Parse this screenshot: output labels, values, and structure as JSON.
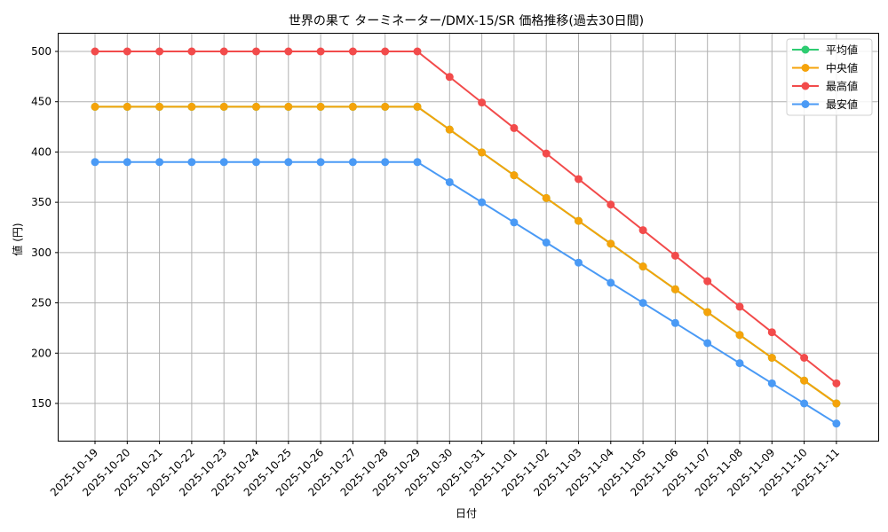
{
  "chart_data": {
    "type": "line",
    "title": "世界の果て ターミネーター/DMX-15/SR 価格推移(過去30日間)",
    "xlabel": "日付",
    "ylabel": "値 (円)",
    "ylim": [
      110,
      520
    ],
    "yticks": [
      150,
      200,
      250,
      300,
      350,
      400,
      450,
      500
    ],
    "grid": true,
    "legend_position": "upper right",
    "categories": [
      "2025-10-19",
      "2025-10-20",
      "2025-10-21",
      "2025-10-22",
      "2025-10-23",
      "2025-10-24",
      "2025-10-25",
      "2025-10-26",
      "2025-10-27",
      "2025-10-28",
      "2025-10-29",
      "2025-10-30",
      "2025-10-31",
      "2025-11-01",
      "2025-11-02",
      "2025-11-03",
      "2025-11-04",
      "2025-11-05",
      "2025-11-06",
      "2025-11-07",
      "2025-11-08",
      "2025-11-09",
      "2025-11-10",
      "2025-11-11"
    ],
    "series": [
      {
        "name": "平均値",
        "color": "#2ecc71",
        "values": [
          445,
          445,
          445,
          445,
          445,
          445,
          445,
          445,
          445,
          445,
          445,
          422.3,
          399.6,
          376.9,
          354.2,
          331.5,
          308.8,
          286.2,
          263.5,
          240.8,
          218.1,
          195.4,
          172.7,
          150
        ]
      },
      {
        "name": "中央値",
        "color": "#f5a30a",
        "values": [
          445,
          445,
          445,
          445,
          445,
          445,
          445,
          445,
          445,
          445,
          445,
          422.3,
          399.6,
          376.9,
          354.2,
          331.5,
          308.8,
          286.2,
          263.5,
          240.8,
          218.1,
          195.4,
          172.7,
          150
        ]
      },
      {
        "name": "最高値",
        "color": "#f24b4b",
        "values": [
          500,
          500,
          500,
          500,
          500,
          500,
          500,
          500,
          500,
          500,
          500,
          474.6,
          449.2,
          423.8,
          398.5,
          373.1,
          347.7,
          322.3,
          296.9,
          271.5,
          246.2,
          220.8,
          195.4,
          170
        ]
      },
      {
        "name": "最安値",
        "color": "#4a9af5",
        "values": [
          390,
          390,
          390,
          390,
          390,
          390,
          390,
          390,
          390,
          390,
          390,
          370,
          350,
          330,
          310,
          290,
          270,
          250,
          230,
          210,
          190,
          170,
          150,
          130
        ]
      }
    ]
  }
}
